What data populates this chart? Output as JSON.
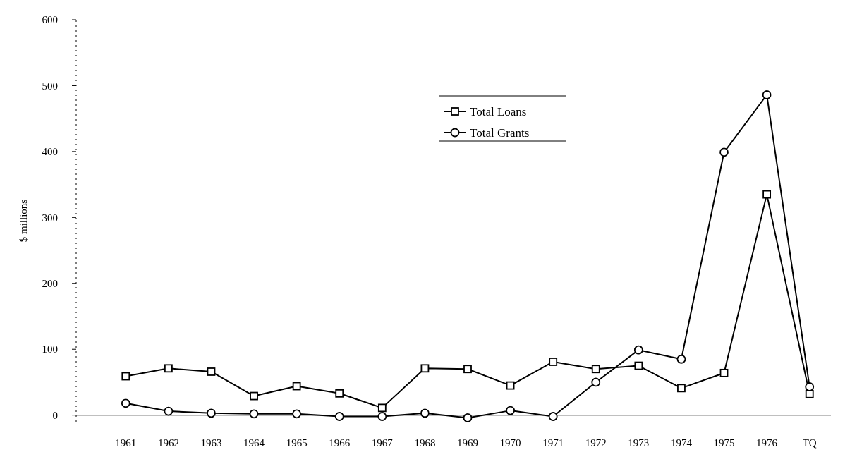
{
  "chart_data": {
    "type": "line",
    "ylabel": "$ millions",
    "categories": [
      "1961",
      "1962",
      "1963",
      "1964",
      "1965",
      "1966",
      "1967",
      "1968",
      "1969",
      "1970",
      "1971",
      "1972",
      "1973",
      "1974",
      "1975",
      "1976",
      "TQ"
    ],
    "series": [
      {
        "name": "Total Loans",
        "color": "#000000",
        "marker": "square",
        "values": [
          59,
          71,
          66,
          29,
          44,
          33,
          11,
          71,
          70,
          45,
          81,
          70,
          75,
          41,
          64,
          335,
          32
        ]
      },
      {
        "name": "Total Grants",
        "color": "#000000",
        "marker": "circle",
        "values": [
          18,
          6,
          3,
          2,
          2,
          -2,
          -2,
          3,
          -4,
          7,
          -2,
          50,
          99,
          85,
          399,
          486,
          43
        ]
      }
    ],
    "ylim": [
      -10,
      600
    ],
    "yticks": [
      0,
      100,
      200,
      300,
      400,
      500,
      600
    ],
    "grid": false,
    "legend": "top",
    "line_style": "solid"
  }
}
